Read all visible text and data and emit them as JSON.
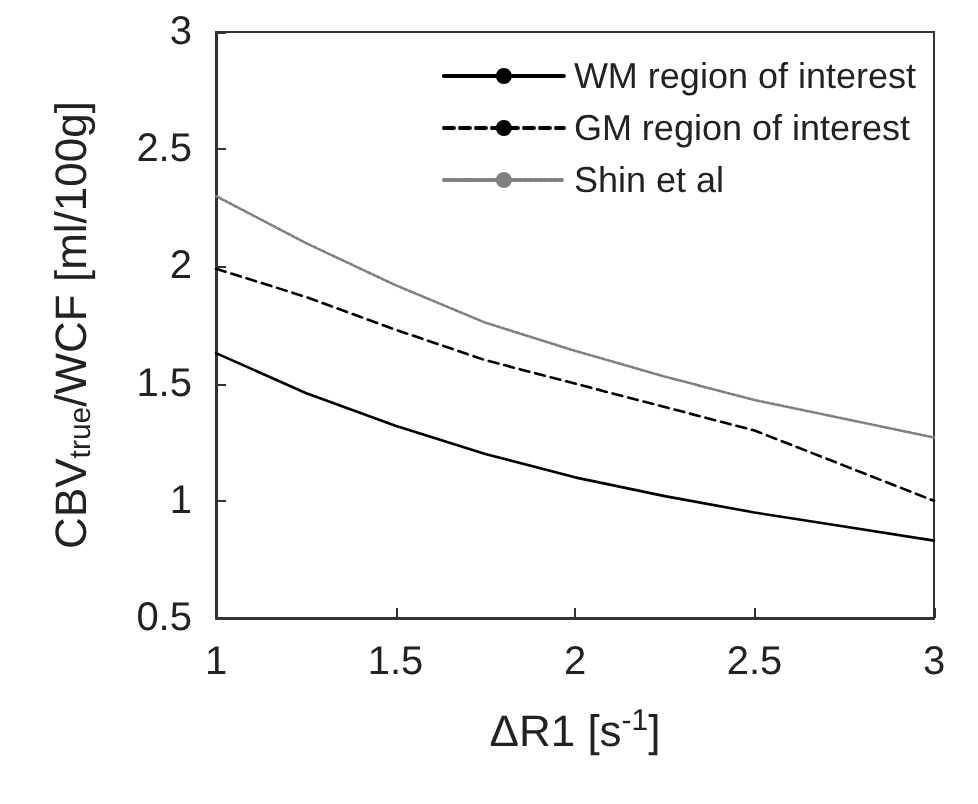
{
  "chart_data": {
    "type": "line",
    "xlabel": "ΔR1 [s$^{-1}$]",
    "ylabel": "CBV$_{true}$/WCF [ml/100g]",
    "x": [
      1,
      1.25,
      1.5,
      1.75,
      2,
      2.25,
      2.5,
      2.75,
      3
    ],
    "xlim": [
      1,
      3
    ],
    "xticks": [
      1,
      1.5,
      2,
      2.5,
      3
    ],
    "ylim": [
      0.5,
      3
    ],
    "yticks": [
      0.5,
      1,
      1.5,
      2,
      2.5,
      3
    ],
    "grid": false,
    "legend": "top right",
    "marker": "none",
    "series": [
      {
        "name": "WM region of interest",
        "color": "#000000",
        "line_style": "solid",
        "values": [
          1.63,
          1.46,
          1.32,
          1.2,
          1.1,
          1.02,
          0.95,
          0.89,
          0.83
        ]
      },
      {
        "name": "GM region of interest",
        "color": "#000000",
        "line_style": "dashed",
        "values": [
          1.99,
          1.87,
          1.73,
          1.6,
          1.5,
          1.4,
          1.3,
          1.15,
          1.0
        ]
      },
      {
        "name": "Shin et al",
        "color": "#808080",
        "line_style": "dotted",
        "values": [
          2.3,
          2.1,
          1.92,
          1.76,
          1.64,
          1.53,
          1.43,
          1.35,
          1.27
        ]
      }
    ]
  }
}
